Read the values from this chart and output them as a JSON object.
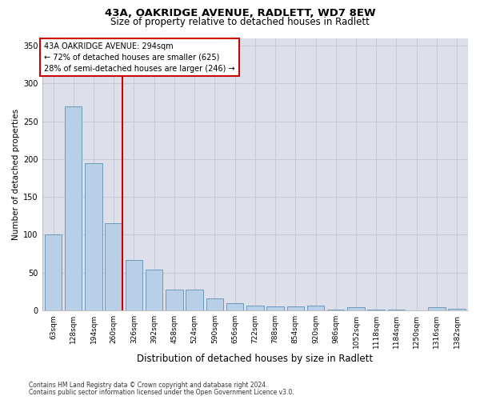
{
  "title_line1": "43A, OAKRIDGE AVENUE, RADLETT, WD7 8EW",
  "title_line2": "Size of property relative to detached houses in Radlett",
  "xlabel": "Distribution of detached houses by size in Radlett",
  "ylabel": "Number of detached properties",
  "footnote_line1": "Contains HM Land Registry data © Crown copyright and database right 2024.",
  "footnote_line2": "Contains public sector information licensed under the Open Government Licence v3.0.",
  "categories": [
    "63sqm",
    "128sqm",
    "194sqm",
    "260sqm",
    "326sqm",
    "392sqm",
    "458sqm",
    "524sqm",
    "590sqm",
    "656sqm",
    "722sqm",
    "788sqm",
    "854sqm",
    "920sqm",
    "986sqm",
    "1052sqm",
    "1118sqm",
    "1184sqm",
    "1250sqm",
    "1316sqm",
    "1382sqm"
  ],
  "values": [
    100,
    270,
    195,
    115,
    67,
    54,
    28,
    28,
    16,
    10,
    6,
    5,
    5,
    6,
    1,
    4,
    1,
    1,
    0,
    4,
    2
  ],
  "bar_color": "#b8cfe8",
  "bar_edge_color": "#7099bb",
  "grid_color": "#c8cad8",
  "background_color": "#dde0ea",
  "property_line_color": "#cc0000",
  "annotation_text": "43A OAKRIDGE AVENUE: 294sqm\n← 72% of detached houses are smaller (625)\n28% of semi-detached houses are larger (246) →",
  "annotation_box_color": "#cc0000",
  "ylim": [
    0,
    360
  ],
  "yticks": [
    0,
    50,
    100,
    150,
    200,
    250,
    300,
    350
  ],
  "prop_bin_index": 3,
  "title1_fontsize": 9.5,
  "title2_fontsize": 8.5,
  "ylabel_fontsize": 7.5,
  "xlabel_fontsize": 8.5,
  "tick_fontsize": 6.5,
  "annot_fontsize": 7.0,
  "footnote_fontsize": 5.5
}
